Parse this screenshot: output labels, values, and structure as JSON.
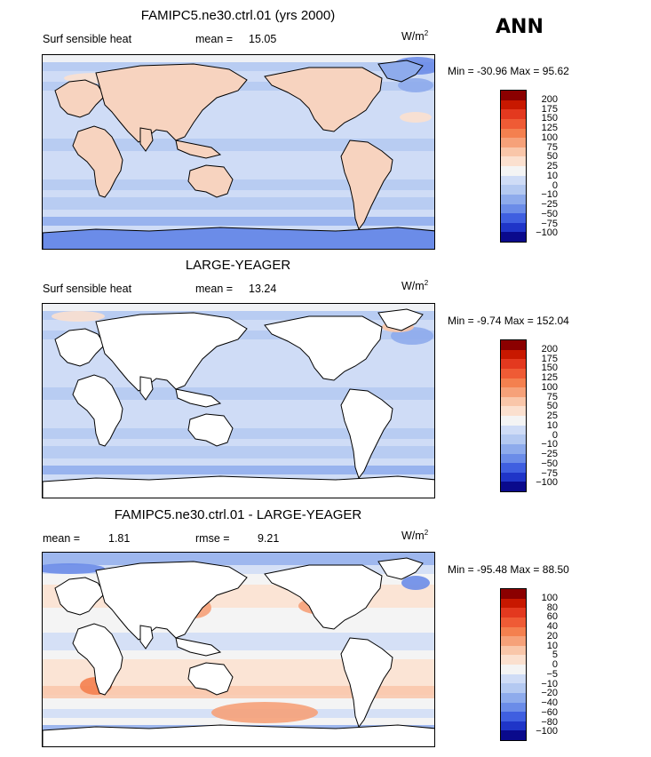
{
  "season": "ANN",
  "units": "W/m",
  "units_sup": "2",
  "chart_data": [
    {
      "type": "heatmap",
      "title": "FAMIPC5.ne30.ctrl.01 (yrs 2000)",
      "variable": "Surf sensible heat",
      "stats": [
        {
          "label": "mean =",
          "value": "15.05"
        }
      ],
      "min_label": "Min =",
      "min": "-30.96",
      "max_label": "Max =",
      "max": "95.62",
      "colorbar_levels": [
        "200",
        "175",
        "150",
        "125",
        "100",
        "75",
        "50",
        "25",
        "10",
        "0",
        "−10",
        "−25",
        "−50",
        "−75",
        "−100"
      ],
      "colorbar_colors": [
        "#8b0000",
        "#c81800",
        "#e3391f",
        "#ef5b35",
        "#f4804f",
        "#f6a179",
        "#f9c6a9",
        "#fbe0cf",
        "#f4f4f4",
        "#cfdcf6",
        "#b4c9f1",
        "#8eabec",
        "#6b8ce8",
        "#3f5fe0",
        "#1f35c8",
        "#0a0a8c"
      ],
      "land": "colored"
    },
    {
      "type": "heatmap",
      "title": "LARGE-YEAGER",
      "variable": "Surf sensible heat",
      "stats": [
        {
          "label": "mean =",
          "value": "13.24"
        }
      ],
      "min_label": "Min =",
      "min": "-9.74",
      "max_label": "Max =",
      "max": "152.04",
      "colorbar_levels": [
        "200",
        "175",
        "150",
        "125",
        "100",
        "75",
        "50",
        "25",
        "10",
        "0",
        "−10",
        "−25",
        "−50",
        "−75",
        "−100"
      ],
      "colorbar_colors": [
        "#8b0000",
        "#c81800",
        "#e3391f",
        "#ef5b35",
        "#f4804f",
        "#f6a179",
        "#f9c6a9",
        "#fbe0cf",
        "#f4f4f4",
        "#cfdcf6",
        "#b4c9f1",
        "#8eabec",
        "#6b8ce8",
        "#3f5fe0",
        "#1f35c8",
        "#0a0a8c"
      ],
      "land": "blank"
    },
    {
      "type": "heatmap",
      "title": "FAMIPC5.ne30.ctrl.01 - LARGE-YEAGER",
      "variable": "",
      "stats": [
        {
          "label": "mean =",
          "value": "1.81"
        },
        {
          "label": "rmse =",
          "value": "9.21"
        }
      ],
      "min_label": "Min =",
      "min": "-95.48",
      "max_label": "Max =",
      "max": "88.50",
      "colorbar_levels": [
        "100",
        "80",
        "60",
        "40",
        "20",
        "10",
        "5",
        "0",
        "−5",
        "−10",
        "−20",
        "−40",
        "−60",
        "−80",
        "−100"
      ],
      "colorbar_colors": [
        "#8b0000",
        "#c81800",
        "#e3391f",
        "#ef5b35",
        "#f4804f",
        "#f6a179",
        "#f9c6a9",
        "#fbe0cf",
        "#f4f4f4",
        "#cfdcf6",
        "#b4c9f1",
        "#8eabec",
        "#6b8ce8",
        "#3f5fe0",
        "#1f35c8",
        "#0a0a8c"
      ],
      "land": "blank"
    }
  ]
}
